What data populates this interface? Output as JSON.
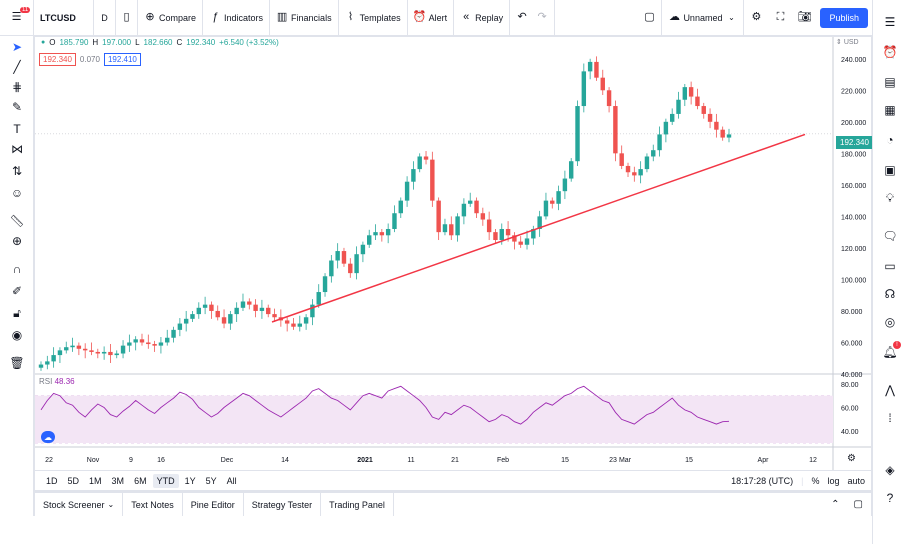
{
  "toolbar": {
    "menu_badge": "11",
    "symbol": "LTCUSD",
    "interval": "D",
    "compare": "Compare",
    "indicators": "Indicators",
    "financials": "Financials",
    "templates": "Templates",
    "alert": "Alert",
    "replay": "Replay",
    "layout_name": "Unnamed",
    "publish": "Publish"
  },
  "legend": {
    "o_label": "O",
    "o": "185.790",
    "h_label": "H",
    "h": "197.000",
    "l_label": "L",
    "l": "182.660",
    "c_label": "C",
    "c": "192.340",
    "change": "+6.540 (+3.52%)",
    "bid": "192.340",
    "spread": "0.070",
    "ask": "192.410",
    "currency": "USD",
    "last_price": "192.340"
  },
  "rsi": {
    "label": "RSI",
    "value": "48.36"
  },
  "colors": {
    "up": "#26a69a",
    "down": "#ef5350",
    "trendline": "#f23645",
    "rsi_line": "#9c27b0",
    "rsi_fill": "#f3e5f5",
    "accent": "#2962ff"
  },
  "chart_data": {
    "type": "candlestick",
    "price_axis": [
      80,
      100,
      120,
      140,
      160,
      180,
      200,
      220,
      240
    ],
    "price_axis_labels": [
      "80.000",
      "100.000",
      "120.000",
      "140.000",
      "160.000",
      "180.000",
      "200.000",
      "220.000",
      "240.000"
    ],
    "y_bottom_labels": [
      "60.000",
      "40.000"
    ],
    "rsi_axis": [
      "80.00",
      "60.00",
      "40.00"
    ],
    "time_axis": [
      "22",
      "Nov",
      "9",
      "16",
      "Dec",
      "14",
      "2021",
      "11",
      "21",
      "Feb",
      "15",
      "23",
      "Mar",
      "15",
      "Apr",
      "12"
    ],
    "closes": [
      46,
      48,
      52,
      55,
      57,
      58,
      56,
      55,
      54,
      53,
      54,
      52,
      53,
      58,
      60,
      62,
      60,
      59,
      58,
      60,
      63,
      68,
      72,
      75,
      78,
      82,
      84,
      80,
      76,
      72,
      78,
      82,
      86,
      84,
      80,
      82,
      78,
      76,
      74,
      72,
      70,
      72,
      76,
      84,
      92,
      102,
      112,
      118,
      110,
      104,
      116,
      122,
      128,
      130,
      128,
      132,
      142,
      150,
      162,
      170,
      178,
      176,
      150,
      130,
      135,
      128,
      140,
      148,
      150,
      142,
      138,
      130,
      125,
      132,
      128,
      124,
      122,
      126,
      132,
      140,
      150,
      148,
      156,
      164,
      175,
      210,
      232,
      238,
      228,
      220,
      210,
      180,
      172,
      168,
      166,
      170,
      178,
      182,
      192,
      200,
      205,
      214,
      222,
      216,
      210,
      205,
      200,
      195,
      190,
      192
    ],
    "trendline": {
      "from_price": 73,
      "to_price": 192
    },
    "rsi_values": [
      58,
      66,
      72,
      70,
      64,
      62,
      56,
      52,
      58,
      63,
      60,
      54,
      52,
      57,
      61,
      66,
      62,
      58,
      55,
      60,
      64,
      68,
      73,
      71,
      67,
      60,
      56,
      52,
      55,
      60,
      64,
      68,
      72,
      70,
      66,
      62,
      58,
      55,
      52,
      56,
      60,
      64,
      68,
      74,
      76,
      72,
      68,
      66,
      62,
      58,
      64,
      70,
      72,
      70,
      68,
      74,
      76,
      78,
      74,
      70,
      66,
      60,
      52,
      50,
      56,
      54,
      58,
      62,
      60,
      56,
      52,
      48,
      50,
      54,
      52,
      48,
      46,
      50,
      56,
      60,
      64,
      62,
      66,
      70,
      72,
      76,
      78,
      74,
      70,
      66,
      64,
      56,
      50,
      48,
      46,
      50,
      54,
      56,
      60,
      64,
      68,
      62,
      58,
      56,
      52,
      50,
      48,
      46,
      48,
      48.36
    ],
    "rsi_range": [
      30,
      85
    ]
  },
  "range": {
    "buttons": [
      "1D",
      "5D",
      "1M",
      "3M",
      "6M",
      "YTD",
      "1Y",
      "5Y",
      "All"
    ],
    "active": "YTD",
    "time": "18:17:28 (UTC)",
    "pct": "%",
    "log": "log",
    "auto": "auto"
  },
  "bottom": {
    "tabs": [
      "Stock Screener",
      "Text Notes",
      "Pine Editor",
      "Strategy Tester",
      "Trading Panel"
    ]
  }
}
